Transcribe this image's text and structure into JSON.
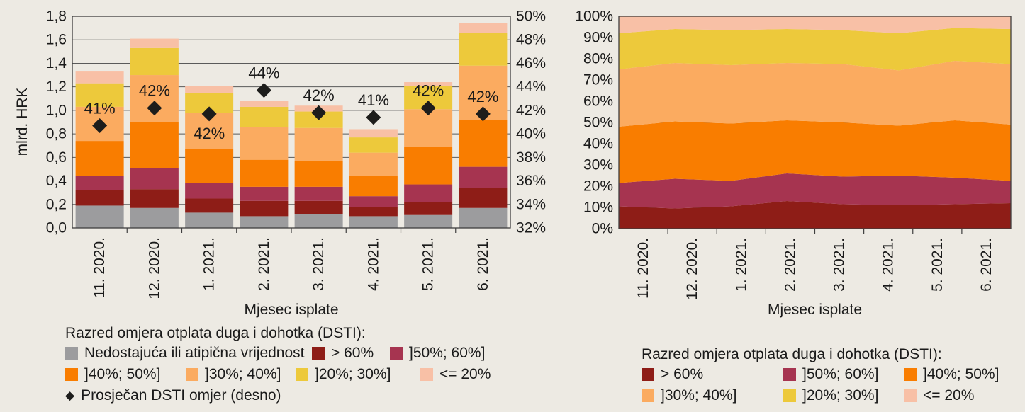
{
  "page": {
    "background": "#edeae3",
    "text_color": "#1a1a1a"
  },
  "chart_data": [
    {
      "type": "bar",
      "stacked": true,
      "title": "",
      "xlabel": "Mjesec isplate",
      "ylabel": "mlrd. HRK",
      "categories": [
        "11. 2020.",
        "12. 2020.",
        "1. 2021.",
        "2. 2021.",
        "3. 2021.",
        "4. 2021.",
        "5. 2021.",
        "6. 2021."
      ],
      "y_left": {
        "min": 0,
        "max": 1.8,
        "ticks": [
          "0,0",
          "0,2",
          "0,4",
          "0,6",
          "0,8",
          "1,0",
          "1,2",
          "1,4",
          "1,6",
          "1,8"
        ]
      },
      "y_right": {
        "min": 32,
        "max": 50,
        "ticks": [
          "32%",
          "34%",
          "36%",
          "38%",
          "40%",
          "42%",
          "44%",
          "46%",
          "48%",
          "50%"
        ]
      },
      "series": [
        {
          "name": "Nedostajuća ili atipična vrijednost",
          "color": "#9c9c9e",
          "values": [
            0.19,
            0.17,
            0.13,
            0.1,
            0.12,
            0.1,
            0.11,
            0.17
          ]
        },
        {
          "name": "> 60%",
          "color": "#8e1d17",
          "values": [
            0.13,
            0.16,
            0.12,
            0.13,
            0.11,
            0.08,
            0.11,
            0.17
          ]
        },
        {
          "name": "]50%; 60%]",
          "color": "#a63450",
          "values": [
            0.12,
            0.18,
            0.13,
            0.12,
            0.12,
            0.09,
            0.15,
            0.18
          ]
        },
        {
          "name": "]40%; 50%]",
          "color": "#f97d00",
          "values": [
            0.3,
            0.39,
            0.29,
            0.23,
            0.22,
            0.17,
            0.32,
            0.4
          ]
        },
        {
          "name": "]30%; 40%]",
          "color": "#fbab60",
          "values": [
            0.29,
            0.4,
            0.31,
            0.28,
            0.28,
            0.2,
            0.32,
            0.46
          ]
        },
        {
          "name": "]20%; 30%]",
          "color": "#edc93b",
          "values": [
            0.2,
            0.23,
            0.17,
            0.17,
            0.14,
            0.13,
            0.2,
            0.28
          ]
        },
        {
          "name": "<= 20%",
          "color": "#f8c0a6",
          "values": [
            0.1,
            0.08,
            0.06,
            0.05,
            0.05,
            0.07,
            0.03,
            0.08
          ]
        }
      ],
      "diamond_series": {
        "name": "Prosječan DSTI omjer (desno)",
        "color": "#1d1d1b",
        "axis": "right",
        "values": [
          40.7,
          42.2,
          41.7,
          43.7,
          41.8,
          41.4,
          42.2,
          41.7
        ],
        "labels": [
          "41%",
          "42%",
          "42%",
          "44%",
          "42%",
          "41%",
          "42%",
          "42%"
        ],
        "label_position": [
          "above",
          "above",
          "below",
          "above",
          "above",
          "above",
          "above",
          "above"
        ]
      }
    },
    {
      "type": "area",
      "stacked": true,
      "percent": true,
      "title": "",
      "xlabel": "Mjesec isplate",
      "categories": [
        "11. 2020.",
        "12. 2020.",
        "1. 2021.",
        "2. 2021.",
        "3. 2021.",
        "4. 2021.",
        "5. 2021.",
        "6. 2021."
      ],
      "y": {
        "min": 0,
        "max": 100,
        "ticks": [
          "0%",
          "10%",
          "20%",
          "30%",
          "40%",
          "50%",
          "60%",
          "70%",
          "80%",
          "90%",
          "100%"
        ]
      },
      "series": [
        {
          "name": "> 60%",
          "color": "#8e1d17",
          "values": [
            10.5,
            9.5,
            10.5,
            13.0,
            11.5,
            11.0,
            11.5,
            12.0
          ]
        },
        {
          "name": "]50%; 60%]",
          "color": "#a63450",
          "values": [
            11.0,
            14.0,
            12.0,
            13.0,
            13.0,
            14.0,
            12.5,
            10.5
          ]
        },
        {
          "name": "]40%; 50%]",
          "color": "#f97d00",
          "values": [
            26.5,
            27.0,
            27.0,
            25.0,
            25.5,
            23.5,
            27.0,
            26.5
          ]
        },
        {
          "name": "]30%; 40%]",
          "color": "#fbab60",
          "values": [
            27.0,
            27.5,
            27.5,
            27.0,
            27.5,
            26.0,
            28.0,
            28.5
          ]
        },
        {
          "name": "]20%; 30%]",
          "color": "#edc93b",
          "values": [
            17.0,
            16.0,
            16.5,
            16.0,
            16.0,
            17.5,
            15.5,
            16.5
          ]
        },
        {
          "name": "<= 20%",
          "color": "#f8c0a6",
          "values": [
            8.0,
            6.0,
            6.5,
            6.0,
            6.5,
            8.0,
            5.5,
            6.0
          ]
        }
      ]
    }
  ],
  "legend_left": {
    "title": "Razred omjera otplata duga i dohotka (DSTI):",
    "rows": [
      [
        {
          "swatch": "#9c9c9e",
          "label": "Nedostajuća ili atipična vrijednost"
        },
        {
          "swatch": "#8e1d17",
          "label": "> 60%"
        },
        {
          "swatch": "#a63450",
          "label": "]50%; 60%]"
        }
      ],
      [
        {
          "swatch": "#f97d00",
          "label": "]40%; 50%]"
        },
        {
          "swatch": "#fbab60",
          "label": "]30%; 40%]"
        },
        {
          "swatch": "#edc93b",
          "label": "]20%; 30%]"
        },
        {
          "swatch": "#f8c0a6",
          "label": "<= 20%"
        }
      ],
      [
        {
          "marker": "diamond",
          "color": "#1d1d1b",
          "label": "Prosječan DSTI omjer (desno)"
        }
      ]
    ]
  },
  "legend_right": {
    "title": "Razred omjera otplata duga i dohotka (DSTI):",
    "rows": [
      [
        {
          "swatch": "#8e1d17",
          "label": "> 60%"
        },
        {
          "swatch": "#a63450",
          "label": "]50%; 60%]"
        },
        {
          "swatch": "#f97d00",
          "label": "]40%; 50%]"
        }
      ],
      [
        {
          "swatch": "#fbab60",
          "label": "]30%; 40%]"
        },
        {
          "swatch": "#edc93b",
          "label": "]20%; 30%]"
        },
        {
          "swatch": "#f8c0a6",
          "label": "<= 20%"
        }
      ]
    ]
  },
  "style": {
    "grid_color": "#5a5a5a",
    "border_color": "#3f3f3f",
    "diamond_color": "#1d1d1b"
  }
}
